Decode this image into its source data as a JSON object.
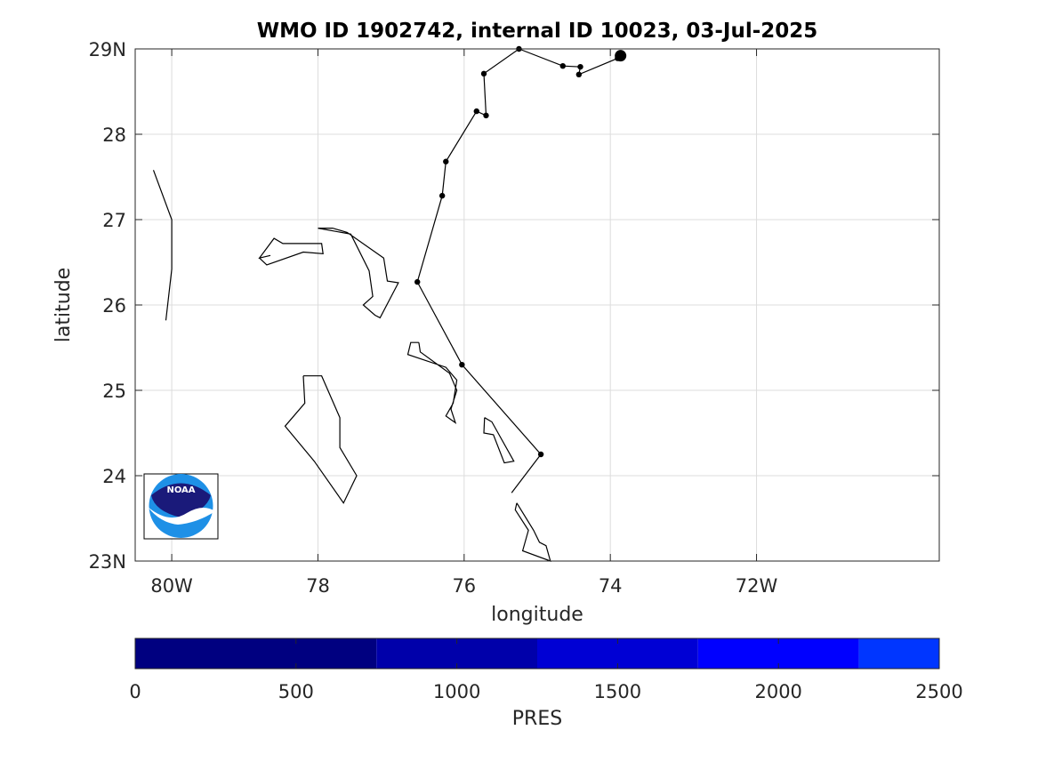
{
  "chart_data": {
    "type": "line",
    "title": "WMO ID 1902742, internal ID 10023, 03-Jul-2025",
    "xlabel": "longitude",
    "ylabel": "latitude",
    "xlim": [
      -80.5,
      -69.5
    ],
    "ylim": [
      23,
      29
    ],
    "grid": true,
    "x_ticks": [
      {
        "value": -80,
        "label": "80W"
      },
      {
        "value": -78,
        "label": "78"
      },
      {
        "value": -76,
        "label": "76"
      },
      {
        "value": -74,
        "label": "74"
      },
      {
        "value": -72,
        "label": "72W"
      }
    ],
    "y_ticks": [
      {
        "value": 23,
        "label": "23N"
      },
      {
        "value": 24,
        "label": "24"
      },
      {
        "value": 25,
        "label": "25"
      },
      {
        "value": 26,
        "label": "26"
      },
      {
        "value": 27,
        "label": "27"
      },
      {
        "value": 28,
        "label": "28"
      },
      {
        "value": 29,
        "label": "29N"
      }
    ],
    "track": {
      "line_color": "#000000",
      "points": [
        {
          "lon": -74.95,
          "lat": 24.25
        },
        {
          "lon": -76.03,
          "lat": 25.3
        },
        {
          "lon": -76.64,
          "lat": 26.27
        },
        {
          "lon": -76.3,
          "lat": 27.28
        },
        {
          "lon": -76.25,
          "lat": 27.68
        },
        {
          "lon": -75.83,
          "lat": 28.27
        },
        {
          "lon": -75.7,
          "lat": 28.22
        },
        {
          "lon": -75.73,
          "lat": 28.71
        },
        {
          "lon": -75.25,
          "lat": 29.0
        },
        {
          "lon": -74.65,
          "lat": 28.8
        },
        {
          "lon": -74.41,
          "lat": 28.79
        },
        {
          "lon": -74.43,
          "lat": 28.7
        },
        {
          "lon": -73.9,
          "lat": 28.89
        },
        {
          "lon": -73.86,
          "lat": 28.92
        }
      ],
      "last_point_marker": "large-dot"
    },
    "coastlines": [
      [
        [
          -80.25,
          27.58
        ],
        [
          -80.0,
          27.0
        ],
        [
          -80.0,
          26.42
        ],
        [
          -80.08,
          25.82
        ]
      ],
      [
        [
          -78.0,
          26.9
        ],
        [
          -77.8,
          26.9
        ],
        [
          -77.6,
          26.85
        ],
        [
          -77.1,
          26.55
        ],
        [
          -77.05,
          26.28
        ],
        [
          -76.9,
          26.26
        ],
        [
          -77.15,
          25.85
        ],
        [
          -77.22,
          25.88
        ],
        [
          -77.38,
          26.0
        ],
        [
          -77.25,
          26.1
        ],
        [
          -77.3,
          26.4
        ],
        [
          -77.55,
          26.83
        ],
        [
          -78.0,
          26.9
        ]
      ],
      [
        [
          -78.65,
          26.58
        ],
        [
          -78.8,
          26.55
        ],
        [
          -78.6,
          26.78
        ],
        [
          -78.48,
          26.72
        ],
        [
          -77.95,
          26.72
        ],
        [
          -77.93,
          26.6
        ],
        [
          -78.2,
          26.62
        ],
        [
          -78.7,
          26.47
        ],
        [
          -78.8,
          26.55
        ]
      ],
      [
        [
          -78.2,
          25.17
        ],
        [
          -77.95,
          25.17
        ],
        [
          -77.7,
          24.68
        ],
        [
          -77.7,
          24.33
        ],
        [
          -77.47,
          24.0
        ],
        [
          -77.65,
          23.68
        ],
        [
          -78.05,
          24.17
        ],
        [
          -78.45,
          24.58
        ],
        [
          -78.18,
          24.85
        ],
        [
          -78.2,
          25.17
        ]
      ],
      [
        [
          -76.62,
          25.56
        ],
        [
          -76.73,
          25.56
        ],
        [
          -76.77,
          25.42
        ],
        [
          -76.25,
          25.27
        ],
        [
          -76.1,
          25.12
        ],
        [
          -76.15,
          24.85
        ],
        [
          -76.25,
          24.7
        ],
        [
          -76.12,
          24.62
        ],
        [
          -76.18,
          24.78
        ],
        [
          -76.1,
          25.0
        ],
        [
          -76.2,
          25.2
        ],
        [
          -76.6,
          25.45
        ],
        [
          -76.62,
          25.56
        ]
      ],
      [
        [
          -75.72,
          24.68
        ],
        [
          -75.62,
          24.63
        ],
        [
          -75.32,
          24.17
        ],
        [
          -75.45,
          24.15
        ],
        [
          -75.6,
          24.48
        ],
        [
          -75.73,
          24.5
        ],
        [
          -75.72,
          24.68
        ]
      ],
      [
        [
          -74.95,
          24.25
        ],
        [
          -75.35,
          23.8
        ]
      ],
      [
        [
          -75.28,
          23.68
        ],
        [
          -75.05,
          23.36
        ],
        [
          -74.97,
          23.22
        ],
        [
          -74.88,
          23.18
        ],
        [
          -74.82,
          23.0
        ],
        [
          -75.2,
          23.12
        ],
        [
          -75.12,
          23.36
        ],
        [
          -75.3,
          23.6
        ],
        [
          -75.28,
          23.68
        ]
      ]
    ],
    "colorbar": {
      "label": "PRES",
      "min": 0,
      "max": 2500,
      "ticks": [
        0,
        500,
        1000,
        1500,
        2000,
        2500
      ],
      "segments": [
        {
          "from": 0,
          "to": 750,
          "color": "#000080"
        },
        {
          "from": 750,
          "to": 1250,
          "color": "#0000aa"
        },
        {
          "from": 1250,
          "to": 1750,
          "color": "#0000d4"
        },
        {
          "from": 1750,
          "to": 2250,
          "color": "#0000ff"
        },
        {
          "from": 2250,
          "to": 2500,
          "color": "#0036ff"
        }
      ]
    },
    "logo": {
      "text": "NOAA",
      "colors": {
        "dark": "#1a1a7a",
        "light": "#1e90e6",
        "white": "#ffffff"
      }
    }
  }
}
